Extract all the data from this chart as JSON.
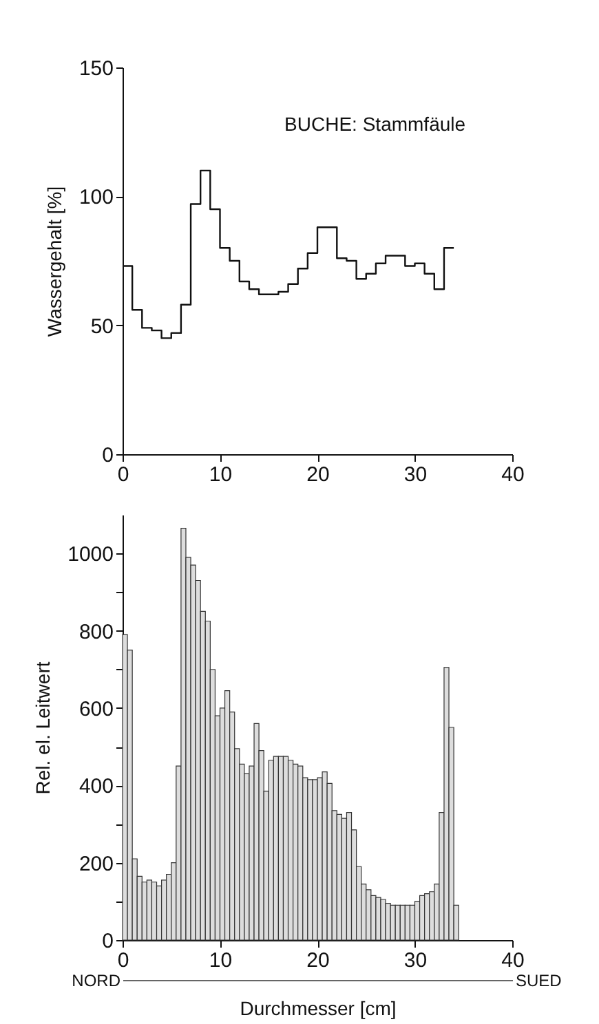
{
  "chart_data": [
    {
      "type": "step",
      "title": "BUCHE: Stammfäule",
      "ylabel": "Wassergehalt [%]",
      "x": [
        0,
        1,
        2,
        3,
        4,
        5,
        6,
        7,
        8,
        9,
        10,
        11,
        12,
        13,
        14,
        15,
        16,
        17,
        18,
        19,
        20,
        21,
        22,
        23,
        24,
        25,
        26,
        27,
        28,
        29,
        30,
        31,
        32,
        33,
        34
      ],
      "series": [
        {
          "color": "#111111",
          "values": [
            73,
            56,
            49,
            48,
            45,
            47,
            58,
            97,
            110,
            95,
            80,
            75,
            67,
            64,
            62,
            62,
            63,
            66,
            72,
            78,
            88,
            88,
            76,
            75,
            68,
            70,
            74,
            77,
            77,
            73,
            74,
            70,
            64,
            80,
            80
          ]
        }
      ],
      "xlim": [
        0,
        40
      ],
      "xticks": [
        0,
        10,
        20,
        30,
        40
      ],
      "ylim": [
        0,
        150
      ],
      "yticks": [
        0,
        50,
        100,
        150
      ]
    },
    {
      "type": "histogram",
      "ylabel": "Rel. el. Leitwert",
      "xlabel": "Durchmesser [cm]",
      "bins": [
        0,
        0.5,
        1,
        1.5,
        2,
        2.5,
        3,
        3.5,
        4,
        4.5,
        5,
        5.5,
        6,
        6.5,
        7,
        7.5,
        8,
        8.5,
        9,
        9.5,
        10,
        10.5,
        11,
        11.5,
        12,
        12.5,
        13,
        13.5,
        14,
        14.5,
        15,
        15.5,
        16,
        16.5,
        17,
        17.5,
        18,
        18.5,
        19,
        19.5,
        20,
        20.5,
        21,
        21.5,
        22,
        22.5,
        23,
        23.5,
        24,
        24.5,
        25,
        25.5,
        26,
        26.5,
        27,
        27.5,
        28,
        28.5,
        29,
        29.5,
        30,
        30.5,
        31,
        31.5,
        32,
        32.5,
        33,
        33.5,
        34,
        34.5
      ],
      "series": [
        {
          "color": "#dddddd",
          "values": [
            790,
            750,
            210,
            165,
            150,
            155,
            150,
            140,
            155,
            170,
            200,
            450,
            1065,
            990,
            970,
            930,
            850,
            825,
            700,
            580,
            600,
            645,
            590,
            495,
            455,
            430,
            450,
            560,
            490,
            385,
            465,
            475,
            475,
            475,
            465,
            455,
            450,
            420,
            415,
            415,
            420,
            435,
            405,
            335,
            325,
            315,
            330,
            285,
            190,
            145,
            130,
            115,
            110,
            105,
            95,
            90,
            90,
            90,
            90,
            90,
            100,
            115,
            120,
            125,
            145,
            330,
            705,
            550,
            90
          ]
        }
      ],
      "xlim": [
        0,
        40
      ],
      "xticks": [
        0,
        10,
        20,
        30,
        40
      ],
      "ylim": [
        0,
        1100
      ],
      "yticks": [
        0,
        {
          "value": 100,
          "label": null
        },
        200,
        {
          "value": 300,
          "label": null
        },
        400,
        {
          "value": 500,
          "label": null
        },
        600,
        {
          "value": 700,
          "label": null
        },
        800,
        {
          "value": 900,
          "label": null
        },
        1000
      ],
      "annotations": [
        "NORD",
        "SUED"
      ]
    }
  ]
}
